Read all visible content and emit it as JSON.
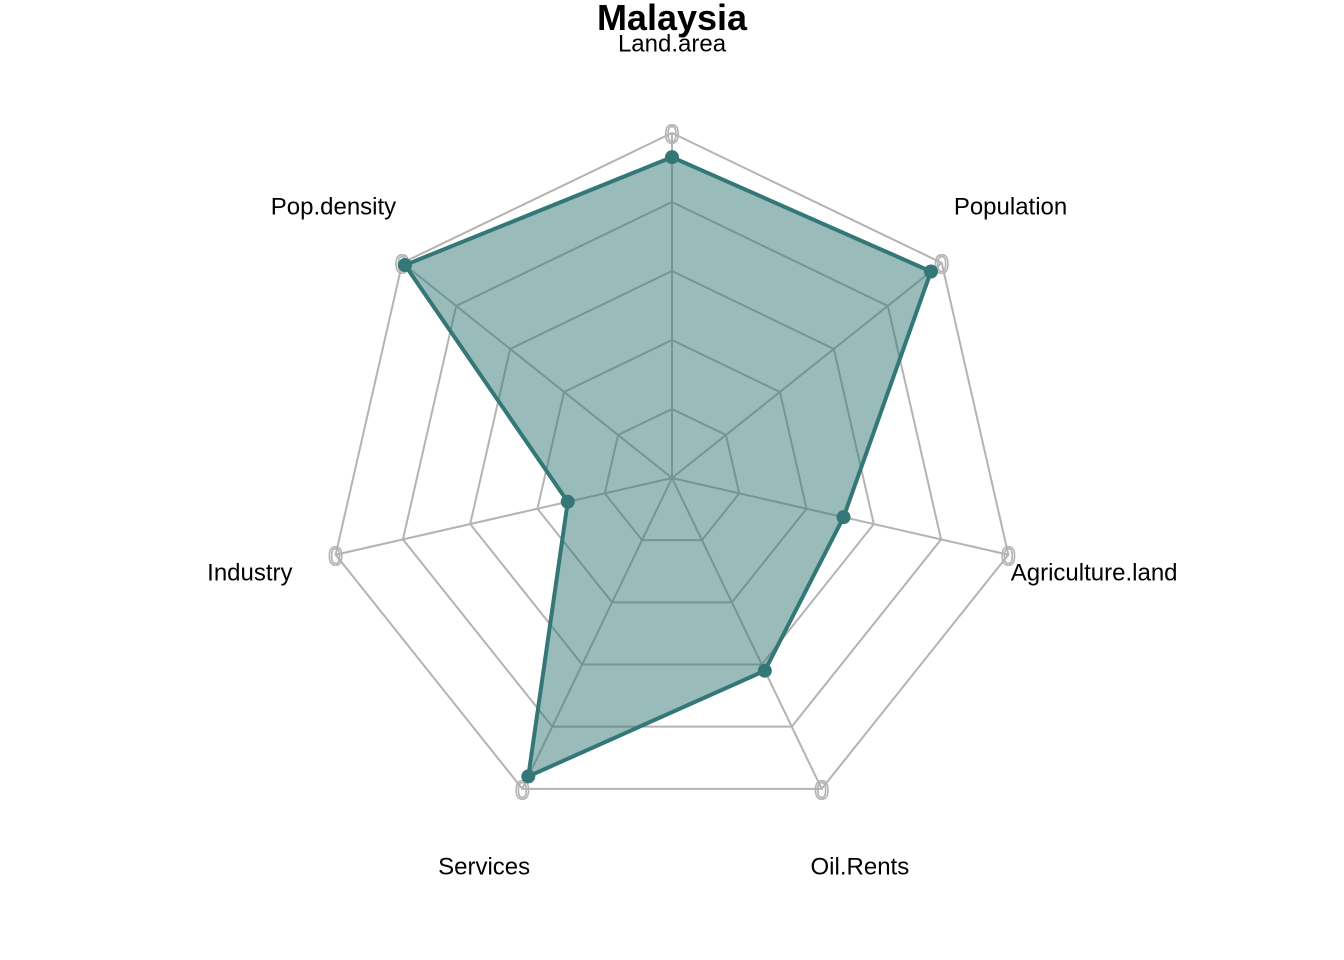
{
  "chart_data": {
    "type": "radar",
    "title": "Malaysia",
    "axes": [
      "Land.area",
      "Population",
      "Agriculture.land",
      "Oil.Rents",
      "Services",
      "Industry",
      "Pop.density"
    ],
    "series": [
      {
        "values": [
          0.93,
          0.96,
          0.51,
          0.62,
          0.96,
          0.31,
          0.99
        ]
      }
    ],
    "range": [
      0,
      1
    ],
    "ring_label": "0",
    "grid_levels": 5,
    "colors": {
      "line": "#337876",
      "fill": "#337876",
      "grid": "#b3b3b3"
    }
  }
}
